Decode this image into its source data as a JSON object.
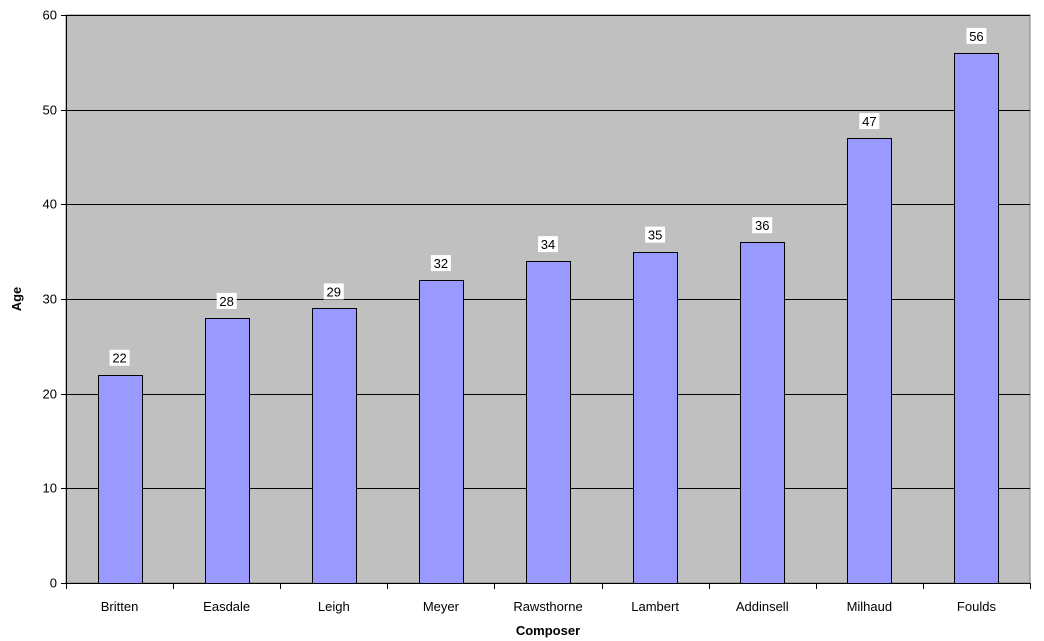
{
  "chart_data": {
    "type": "bar",
    "categories": [
      "Britten",
      "Easdale",
      "Leigh",
      "Meyer",
      "Rawsthorne",
      "Lambert",
      "Addinsell",
      "Milhaud",
      "Foulds"
    ],
    "series": [
      {
        "values": [
          22,
          28,
          29,
          32,
          34,
          35,
          36,
          47,
          56
        ]
      }
    ],
    "data_labels": [
      "22",
      "28",
      "29",
      "32",
      "34",
      "35",
      "36",
      "47",
      "56"
    ],
    "y_ticks": [
      "0",
      "10",
      "20",
      "30",
      "40",
      "50",
      "60"
    ],
    "title": "",
    "xlabel": "Composer",
    "ylabel": "Age",
    "ylim": [
      0,
      60
    ],
    "grid": true,
    "legend": "none",
    "colors": {
      "plot_background": "#c0c0c0",
      "bar_fill": "#9999ff",
      "bar_stroke": "#000000",
      "gridline": "#000000",
      "data_label_background": "#ffffff"
    }
  }
}
